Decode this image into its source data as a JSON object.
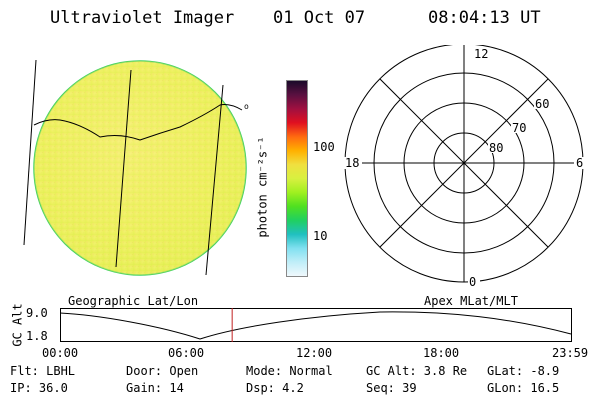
{
  "header": {
    "title": "Ultraviolet Imager",
    "date": "01 Oct 07",
    "time": "08:04:13 UT"
  },
  "colorbar": {
    "unit_label": "photon cm⁻²s⁻¹",
    "ticks": [
      "100",
      "10"
    ],
    "colors": [
      "#1a0a2a",
      "#5a1040",
      "#a01040",
      "#e01020",
      "#ff6a10",
      "#ffb000",
      "#f0e040",
      "#d8f040",
      "#a0f020",
      "#50e020",
      "#20d060",
      "#20c0c0",
      "#80e0f0",
      "#c0eef8",
      "#f0f8fc"
    ]
  },
  "earth_image": {
    "label": "Geographic Lat/Lon",
    "disk_color": "#f4f070",
    "edge_color": "#40d060"
  },
  "polar_plot": {
    "label": "Apex MLat/MLT",
    "mlt_labels": {
      "top": "12",
      "left": "18",
      "right": "6",
      "bottom": "0"
    },
    "lat_labels": [
      "60",
      "70",
      "80"
    ]
  },
  "altitude_plot": {
    "ylabel": "GC Alt",
    "yticks": [
      "9.0",
      "1.8"
    ],
    "xticks": [
      "00:00",
      "06:00",
      "12:00",
      "18:00",
      "23:59"
    ],
    "marker_time_hours": 8.07
  },
  "info": {
    "row1": {
      "flt": "Flt: LBHL",
      "door": "Door: Open",
      "mode": "Mode: Normal",
      "gcalt": "GC Alt: 3.8 Re",
      "glat": "GLat:   -8.9"
    },
    "row2": {
      "ip": "IP: 36.0",
      "gain": "Gain: 14",
      "dsp": "Dsp:     4.2",
      "seq": "Seq: 39",
      "glon": "GLon:   16.5"
    }
  }
}
